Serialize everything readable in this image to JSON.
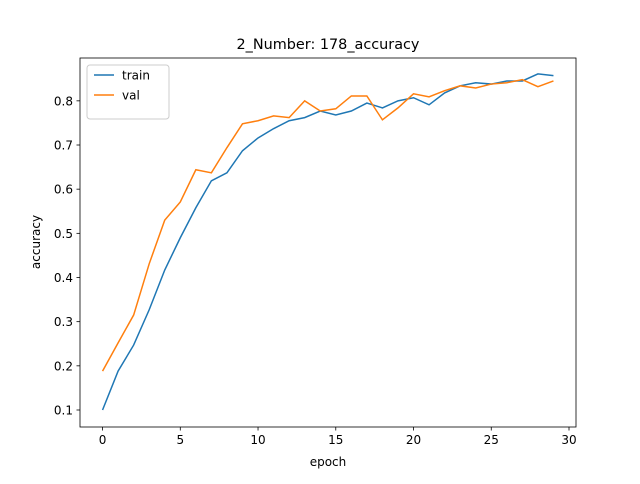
{
  "chart_data": {
    "type": "line",
    "title": "2_Number: 178_accuracy",
    "x_label": "epoch",
    "y_label": "accuracy",
    "x": [
      0,
      1,
      2,
      3,
      4,
      5,
      6,
      7,
      8,
      9,
      10,
      11,
      12,
      13,
      14,
      15,
      16,
      17,
      18,
      19,
      20,
      21,
      22,
      23,
      24,
      25,
      26,
      27,
      28,
      29
    ],
    "series": [
      {
        "name": "train",
        "color": "#1f77b4",
        "values": [
          0.1,
          0.188,
          0.247,
          0.327,
          0.417,
          0.49,
          0.558,
          0.619,
          0.637,
          0.687,
          0.716,
          0.737,
          0.755,
          0.762,
          0.777,
          0.768,
          0.777,
          0.795,
          0.784,
          0.8,
          0.807,
          0.791,
          0.818,
          0.834,
          0.841,
          0.838,
          0.845,
          0.845,
          0.861,
          0.857
        ]
      },
      {
        "name": "val",
        "color": "#ff7f0e",
        "values": [
          0.188,
          0.252,
          0.315,
          0.431,
          0.53,
          0.571,
          0.644,
          0.637,
          0.694,
          0.748,
          0.755,
          0.766,
          0.762,
          0.8,
          0.777,
          0.782,
          0.811,
          0.811,
          0.757,
          0.784,
          0.816,
          0.809,
          0.823,
          0.834,
          0.829,
          0.838,
          0.841,
          0.848,
          0.832,
          0.845
        ]
      }
    ],
    "xlim": [
      -1.45,
      30.45
    ],
    "xticks": [
      0,
      5,
      10,
      15,
      20,
      25,
      30
    ],
    "ylim": [
      0.0615,
      0.897
    ],
    "yticks": [
      0.1,
      0.2,
      0.3,
      0.4,
      0.5,
      0.6,
      0.7,
      0.8
    ],
    "legend": "upper left",
    "grid": false
  }
}
